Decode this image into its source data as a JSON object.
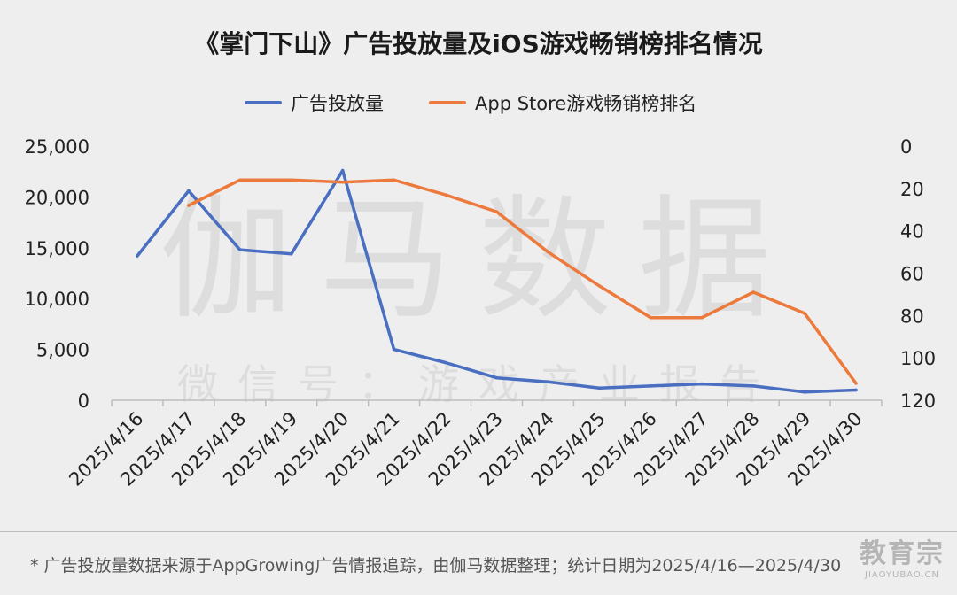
{
  "chart_data": {
    "type": "line",
    "title": "《掌门下山》广告投放量及iOS游戏畅销榜排名情况",
    "categories": [
      "2025/4/16",
      "2025/4/17",
      "2025/4/18",
      "2025/4/19",
      "2025/4/20",
      "2025/4/21",
      "2025/4/22",
      "2025/4/23",
      "2025/4/24",
      "2025/4/25",
      "2025/4/26",
      "2025/4/27",
      "2025/4/28",
      "2025/4/29",
      "2025/4/30"
    ],
    "series": [
      {
        "name": "广告投放量",
        "axis": "left",
        "color": "#4a6fc1",
        "values": [
          14200,
          20600,
          14800,
          14400,
          22600,
          5000,
          3700,
          2200,
          1800,
          1200,
          1400,
          1600,
          1400,
          800,
          1000
        ]
      },
      {
        "name": "App Store游戏畅销榜排名",
        "axis": "right",
        "color": "#ec7a3c",
        "values": [
          null,
          28,
          16,
          16,
          17,
          16,
          23,
          31,
          50,
          66,
          81,
          81,
          69,
          79,
          112
        ]
      }
    ],
    "y_left": {
      "range": [
        0,
        25000
      ],
      "ticks": [
        "25,000",
        "20,000",
        "15,000",
        "10,000",
        "5,000",
        "0"
      ]
    },
    "y_right": {
      "range": [
        0,
        120
      ],
      "inverted": true,
      "ticks": [
        "0",
        "20",
        "40",
        "60",
        "80",
        "100",
        "120"
      ]
    },
    "legend_position": "top-center",
    "grid": false
  },
  "watermark": {
    "main": "伽马数据",
    "sub": "微信号：游戏产业报告"
  },
  "footnote": "* 广告投放量数据来源于AppGrowing广告情报追踪，由伽马数据整理；统计日期为2025/4/16—2025/4/30",
  "brand_watermark": {
    "main": "教育宗",
    "sub": "JIAOYUBAO.CN"
  }
}
